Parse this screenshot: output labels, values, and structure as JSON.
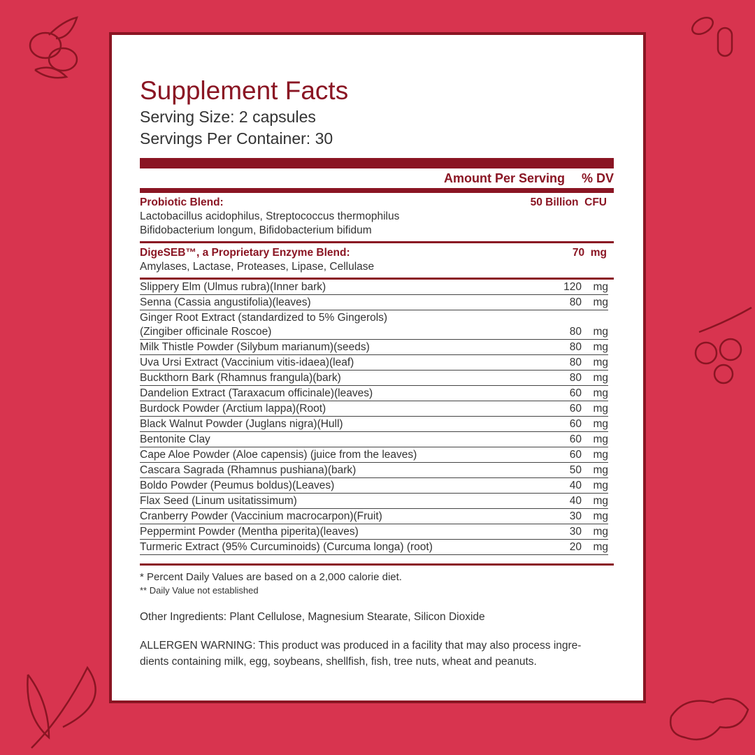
{
  "header": {
    "title": "Supplement Facts",
    "serving_size": "Serving Size: 2 capsules",
    "servings_per_container": "Servings Per Container: 30"
  },
  "columns": {
    "amount": "Amount Per Serving",
    "dv": "% DV"
  },
  "blends": [
    {
      "name": "Probiotic Blend:",
      "ingredients": [
        "Lactobacillus acidophilus, Streptococcus thermophilus",
        "Bifidobacterium longum, Bifidobacterium bifidum"
      ],
      "amount": "50 Billion",
      "unit": "CFU"
    },
    {
      "name": "DigeSEB™, a Proprietary Enzyme Blend:",
      "ingredients": [
        "Amylases, Lactase, Proteases, Lipase, Cellulase"
      ],
      "amount": "70",
      "unit": "mg"
    }
  ],
  "rows": [
    {
      "lines": [
        "Slippery Elm (Ulmus rubra)(Inner bark)"
      ],
      "amount": "120",
      "unit": "mg"
    },
    {
      "lines": [
        "Senna (Cassia angustifolia)(leaves)"
      ],
      "amount": "80",
      "unit": "mg"
    },
    {
      "lines": [
        "Ginger Root Extract (standardized to 5% Gingerols)",
        "(Zingiber officinale Roscoe)"
      ],
      "amount": "80",
      "unit": "mg"
    },
    {
      "lines": [
        "Milk Thistle Powder (Silybum marianum)(seeds)"
      ],
      "amount": "80",
      "unit": "mg"
    },
    {
      "lines": [
        "Uva Ursi Extract (Vaccinium vitis-idaea)(leaf)"
      ],
      "amount": "80",
      "unit": "mg"
    },
    {
      "lines": [
        "Buckthorn Bark (Rhamnus frangula)(bark)"
      ],
      "amount": "80",
      "unit": "mg"
    },
    {
      "lines": [
        "Dandelion Extract (Taraxacum officinale)(leaves)"
      ],
      "amount": "60",
      "unit": "mg"
    },
    {
      "lines": [
        "Burdock Powder (Arctium lappa)(Root)"
      ],
      "amount": "60",
      "unit": "mg"
    },
    {
      "lines": [
        "Black Walnut Powder (Juglans nigra)(Hull)"
      ],
      "amount": "60",
      "unit": "mg"
    },
    {
      "lines": [
        "Bentonite Clay"
      ],
      "amount": "60",
      "unit": "mg"
    },
    {
      "lines": [
        "Cape Aloe Powder (Aloe capensis) (juice from the leaves)"
      ],
      "amount": "60",
      "unit": "mg"
    },
    {
      "lines": [
        "Cascara Sagrada (Rhamnus pushiana)(bark)"
      ],
      "amount": "50",
      "unit": "mg"
    },
    {
      "lines": [
        "Boldo Powder (Peumus boldus)(Leaves)"
      ],
      "amount": "40",
      "unit": "mg"
    },
    {
      "lines": [
        "Flax Seed (Linum usitatissimum)"
      ],
      "amount": "40",
      "unit": "mg"
    },
    {
      "lines": [
        "Cranberry Powder (Vaccinium macrocarpon)(Fruit)"
      ],
      "amount": "30",
      "unit": "mg"
    },
    {
      "lines": [
        "Peppermint Powder (Mentha piperita)(leaves)"
      ],
      "amount": "30",
      "unit": "mg"
    },
    {
      "lines": [
        "Turmeric Extract (95% Curcuminoids) (Curcuma longa) (root)"
      ],
      "amount": "20",
      "unit": "mg"
    }
  ],
  "footnotes": [
    "* Percent Daily Values are based on a 2,000 calorie diet.",
    "** Daily Value not established"
  ],
  "other_ingredients": "Other Ingredients: Plant Cellulose, Magnesium Stearate, Silicon Dioxide",
  "allergen_warning": [
    "ALLERGEN WARNING: This product was produced in a facility that may also process ingre-",
    "dients containing milk, egg, soybeans, shellfish, fish, tree nuts, wheat and peanuts."
  ]
}
